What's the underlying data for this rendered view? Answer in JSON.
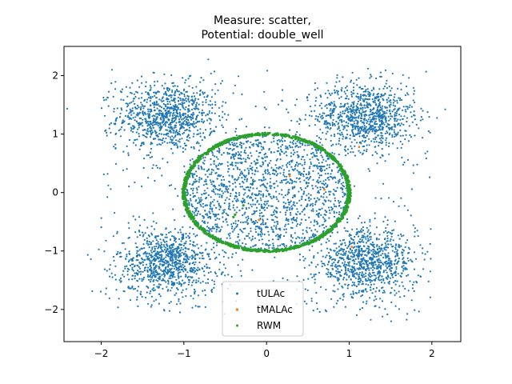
{
  "chart_data": {
    "type": "scatter",
    "title_lines": [
      "Measure: scatter,",
      "Potential: double_well"
    ],
    "xlabel": "",
    "ylabel": "",
    "xlim": [
      -2.45,
      2.35
    ],
    "ylim": [
      -2.55,
      2.5
    ],
    "x_ticks": [
      -2,
      -1,
      0,
      1,
      2
    ],
    "y_ticks": [
      -2,
      -1,
      0,
      1,
      2
    ],
    "x_tick_labels": [
      "−2",
      "−1",
      "0",
      "1",
      "2"
    ],
    "y_tick_labels": [
      "−2",
      "−1",
      "0",
      "1",
      "2"
    ],
    "grid": false,
    "legend_position": "lower-center",
    "series": [
      {
        "name": "tULAc",
        "color": "#1f77b4",
        "description_clusters": [
          {
            "center": [
              -1.2,
              1.3
            ],
            "spread": 0.3
          },
          {
            "center": [
              1.2,
              1.3
            ],
            "spread": 0.3
          },
          {
            "center": [
              -1.2,
              -1.2
            ],
            "spread": 0.3
          },
          {
            "center": [
              1.2,
              -1.2
            ],
            "spread": 0.3
          },
          {
            "center": [
              0.0,
              0.0
            ],
            "radius": 1.0
          }
        ]
      },
      {
        "name": "tMALAc",
        "color": "#ff7f0e",
        "points": [
          [
            0.28,
            0.28
          ],
          [
            0.7,
            0.05
          ],
          [
            -0.09,
            -0.47
          ],
          [
            1.03,
            -0.93
          ],
          [
            1.12,
            0.78
          ]
        ]
      },
      {
        "name": "RWM",
        "color": "#2ca02c",
        "shape": "circle",
        "center": [
          0.0,
          0.0
        ],
        "radius_x": 1.0,
        "radius_y": 1.0,
        "extra_points": [
          [
            -0.38,
            -0.38
          ],
          [
            -0.28,
            -0.22
          ],
          [
            -0.4,
            -0.42
          ]
        ]
      }
    ]
  }
}
